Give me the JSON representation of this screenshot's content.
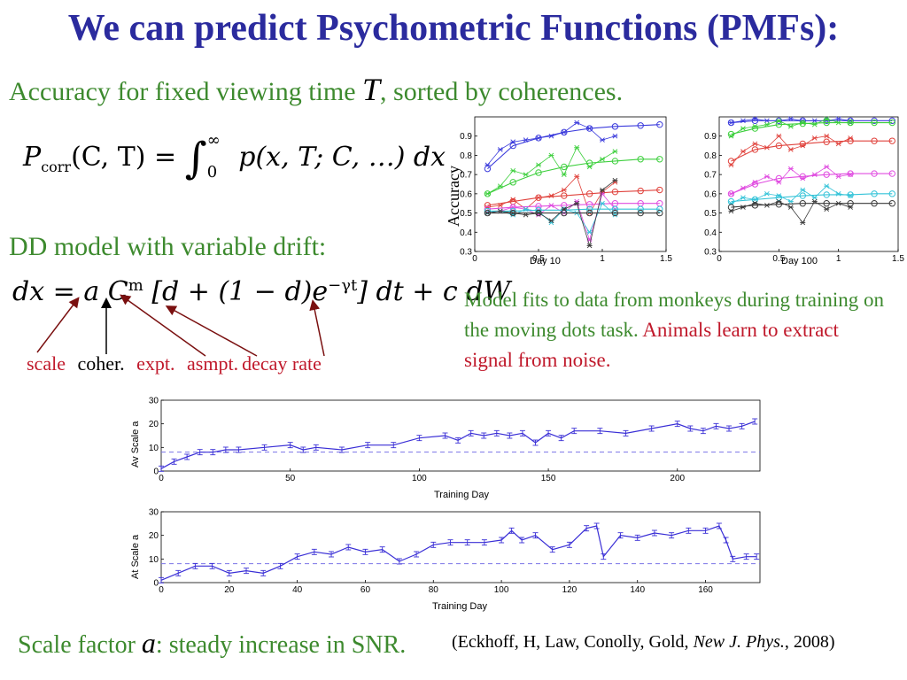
{
  "title": "We can predict Psychometric Functions (PMFs):",
  "line1": {
    "pre": "Accuracy for fixed viewing time",
    "var": "T",
    "post": ", sorted by coherences."
  },
  "eq1": {
    "lhs": "P",
    "sub": "corr",
    "args": "(C, T) =",
    "upper": "∞",
    "lower": "0",
    "integrand": "p(x, T; C, …) dx"
  },
  "line2": "DD model with variable drift:",
  "eq2": {
    "lhs": "dx = a C",
    "exp1": "m",
    "mid": " [d + (1 − d)e",
    "exp2": "−γt",
    "rhs": "] dt + c dW"
  },
  "param_labels": {
    "scale": "scale",
    "coher": "coher.",
    "expt": "expt.",
    "asmpt": "asmpt.",
    "decay": "decay rate"
  },
  "caption": {
    "black": "Model fits to data from monkeys during training on the moving dots task.",
    "red": "Animals learn to extract signal from noise."
  },
  "bottom": {
    "pre": "Scale factor",
    "var": "a",
    "post": ": steady increase in SNR."
  },
  "citation": {
    "pre": "(Eckhoff, H, Law, Conolly, Gold, ",
    "journal": "New J. Phys.",
    "post": ", 2008)"
  },
  "colors": {
    "title": "#2b2b9e",
    "green_text": "#3d8a2e",
    "red_text": "#c0192b",
    "plot_line": "#3a2fd6"
  },
  "chart_data": [
    {
      "type": "line",
      "ylabel": "Accuracy",
      "xlabel": "Day 10",
      "xlim": [
        0,
        1.5
      ],
      "ylim": [
        0.3,
        1.0
      ],
      "xticks": [
        "0",
        "0.5",
        "1",
        "1.5"
      ],
      "yticks": [
        "0.3",
        "0.4",
        "0.5",
        "0.6",
        "0.7",
        "0.8",
        "0.9"
      ],
      "fit_x": [
        0.1,
        0.3,
        0.5,
        0.7,
        0.9,
        1.1,
        1.3,
        1.45
      ],
      "series": [
        {
          "color": "#3b3bdc",
          "fit": [
            0.73,
            0.85,
            0.89,
            0.92,
            0.94,
            0.95,
            0.955,
            0.96
          ],
          "data_x": [
            0.1,
            0.2,
            0.3,
            0.4,
            0.5,
            0.6,
            0.7,
            0.8,
            0.9,
            1.0,
            1.1
          ],
          "data": [
            0.75,
            0.83,
            0.87,
            0.88,
            0.89,
            0.9,
            0.92,
            0.97,
            0.94,
            0.88,
            0.9
          ]
        },
        {
          "color": "#3ccf3c",
          "fit": [
            0.6,
            0.66,
            0.71,
            0.74,
            0.76,
            0.77,
            0.78,
            0.78
          ],
          "data_x": [
            0.1,
            0.2,
            0.3,
            0.4,
            0.5,
            0.6,
            0.7,
            0.8,
            0.9,
            1.0,
            1.1
          ],
          "data": [
            0.6,
            0.64,
            0.72,
            0.7,
            0.75,
            0.8,
            0.7,
            0.84,
            0.74,
            0.78,
            0.82
          ]
        },
        {
          "color": "#e0423c",
          "fit": [
            0.54,
            0.56,
            0.58,
            0.59,
            0.6,
            0.61,
            0.615,
            0.62
          ],
          "data_x": [
            0.1,
            0.2,
            0.3,
            0.4,
            0.5,
            0.6,
            0.7,
            0.8,
            0.9,
            1.0,
            1.1
          ],
          "data": [
            0.53,
            0.54,
            0.57,
            0.52,
            0.58,
            0.59,
            0.62,
            0.69,
            0.5,
            0.61,
            0.66
          ]
        },
        {
          "color": "#e04ce0",
          "fit": [
            0.52,
            0.53,
            0.535,
            0.54,
            0.545,
            0.55,
            0.55,
            0.55
          ],
          "data_x": [
            0.1,
            0.2,
            0.3,
            0.4,
            0.5,
            0.6,
            0.7,
            0.8,
            0.9,
            1.0,
            1.1
          ],
          "data": [
            0.5,
            0.51,
            0.53,
            0.52,
            0.49,
            0.54,
            0.5,
            0.56,
            0.36,
            0.6,
            0.52
          ]
        },
        {
          "color": "#33c3d8",
          "fit": [
            0.51,
            0.51,
            0.515,
            0.515,
            0.52,
            0.52,
            0.52,
            0.52
          ],
          "data_x": [
            0.1,
            0.2,
            0.3,
            0.4,
            0.5,
            0.6,
            0.7,
            0.8,
            0.9,
            1.0,
            1.1
          ],
          "data": [
            0.5,
            0.51,
            0.49,
            0.52,
            0.51,
            0.45,
            0.52,
            0.5,
            0.4,
            0.55,
            0.49
          ]
        },
        {
          "color": "#3a3a3a",
          "fit": [
            0.5,
            0.5,
            0.5,
            0.5,
            0.5,
            0.5,
            0.5,
            0.5
          ],
          "data_x": [
            0.1,
            0.2,
            0.3,
            0.4,
            0.5,
            0.6,
            0.7,
            0.8,
            0.9,
            1.0,
            1.1
          ],
          "data": [
            0.5,
            0.51,
            0.5,
            0.49,
            0.5,
            0.46,
            0.52,
            0.55,
            0.33,
            0.62,
            0.67
          ]
        }
      ]
    },
    {
      "type": "line",
      "xlabel": "Day 100",
      "xlim": [
        0,
        1.5
      ],
      "ylim": [
        0.3,
        1.0
      ],
      "xticks": [
        "0",
        "0.5",
        "1",
        "1.5"
      ],
      "yticks": [
        "0.3",
        "0.4",
        "0.5",
        "0.6",
        "0.7",
        "0.8",
        "0.9"
      ],
      "fit_x": [
        0.1,
        0.3,
        0.5,
        0.7,
        0.9,
        1.1,
        1.3,
        1.45
      ],
      "series": [
        {
          "color": "#3b3bdc",
          "fit": [
            0.97,
            0.98,
            0.98,
            0.98,
            0.98,
            0.98,
            0.98,
            0.98
          ],
          "data_x": [
            0.1,
            0.2,
            0.3,
            0.4,
            0.5,
            0.6,
            0.7,
            0.8,
            0.9,
            1.0,
            1.1
          ],
          "data": [
            0.97,
            0.98,
            0.99,
            0.98,
            0.98,
            0.99,
            0.98,
            0.98,
            0.98,
            0.99,
            0.98
          ]
        },
        {
          "color": "#3ccf3c",
          "fit": [
            0.91,
            0.94,
            0.96,
            0.965,
            0.97,
            0.97,
            0.97,
            0.97
          ],
          "data_x": [
            0.1,
            0.2,
            0.3,
            0.4,
            0.5,
            0.6,
            0.7,
            0.8,
            0.9,
            1.0,
            1.1
          ],
          "data": [
            0.9,
            0.94,
            0.95,
            0.96,
            0.98,
            0.95,
            0.97,
            0.96,
            0.99,
            0.97,
            0.97
          ]
        },
        {
          "color": "#e0423c",
          "fit": [
            0.77,
            0.83,
            0.85,
            0.86,
            0.87,
            0.875,
            0.875,
            0.875
          ],
          "data_x": [
            0.1,
            0.2,
            0.3,
            0.4,
            0.5,
            0.6,
            0.7,
            0.8,
            0.9,
            1.0,
            1.1
          ],
          "data": [
            0.75,
            0.82,
            0.86,
            0.84,
            0.9,
            0.83,
            0.85,
            0.89,
            0.9,
            0.86,
            0.89
          ]
        },
        {
          "color": "#e04ce0",
          "fit": [
            0.6,
            0.65,
            0.68,
            0.69,
            0.7,
            0.705,
            0.705,
            0.705
          ],
          "data_x": [
            0.1,
            0.2,
            0.3,
            0.4,
            0.5,
            0.6,
            0.7,
            0.8,
            0.9,
            1.0,
            1.1
          ],
          "data": [
            0.6,
            0.63,
            0.66,
            0.69,
            0.66,
            0.73,
            0.68,
            0.7,
            0.74,
            0.69,
            0.7
          ]
        },
        {
          "color": "#33c3d8",
          "fit": [
            0.56,
            0.57,
            0.58,
            0.59,
            0.595,
            0.595,
            0.6,
            0.6
          ],
          "data_x": [
            0.1,
            0.2,
            0.3,
            0.4,
            0.5,
            0.6,
            0.7,
            0.8,
            0.9,
            1.0,
            1.1
          ],
          "data": [
            0.55,
            0.58,
            0.57,
            0.6,
            0.59,
            0.56,
            0.62,
            0.58,
            0.64,
            0.6,
            0.59
          ]
        },
        {
          "color": "#3a3a3a",
          "fit": [
            0.53,
            0.54,
            0.545,
            0.55,
            0.55,
            0.55,
            0.55,
            0.55
          ],
          "data_x": [
            0.1,
            0.2,
            0.3,
            0.4,
            0.5,
            0.6,
            0.7,
            0.8,
            0.9,
            1.0,
            1.1
          ],
          "data": [
            0.51,
            0.53,
            0.55,
            0.54,
            0.56,
            0.53,
            0.45,
            0.56,
            0.52,
            0.55,
            0.53
          ]
        }
      ]
    },
    {
      "type": "line",
      "xlabel": "Training Day",
      "ylabel": "Av Scale a",
      "xlim": [
        0,
        232
      ],
      "ylim": [
        0,
        30
      ],
      "xticks": [
        "0",
        "50",
        "100",
        "150",
        "200"
      ],
      "yticks": [
        "0",
        "10",
        "20",
        "30"
      ],
      "reference": 8,
      "series": [
        {
          "x": [
            0,
            5,
            10,
            15,
            20,
            25,
            30,
            40,
            50,
            55,
            60,
            70,
            80,
            90,
            100,
            110,
            115,
            120,
            125,
            130,
            135,
            140,
            145,
            150,
            155,
            160,
            170,
            180,
            190,
            200,
            205,
            210,
            215,
            220,
            225,
            230
          ],
          "values": [
            1,
            4,
            6,
            8,
            8,
            9,
            9,
            10,
            11,
            9,
            10,
            9,
            11,
            11,
            14,
            15,
            13,
            16,
            15,
            16,
            15,
            16,
            12,
            16,
            14,
            17,
            17,
            16,
            18,
            20,
            18,
            17,
            19,
            18,
            19,
            21
          ]
        }
      ]
    },
    {
      "type": "line",
      "xlabel": "Training Day",
      "ylabel": "At Scale a",
      "xlim": [
        0,
        176
      ],
      "ylim": [
        0,
        30
      ],
      "xticks": [
        "0",
        "20",
        "40",
        "60",
        "80",
        "100",
        "120",
        "140",
        "160"
      ],
      "yticks": [
        "0",
        "10",
        "20",
        "30"
      ],
      "reference": 8,
      "series": [
        {
          "x": [
            0,
            5,
            10,
            15,
            20,
            25,
            30,
            35,
            40,
            45,
            50,
            55,
            60,
            65,
            70,
            75,
            80,
            85,
            90,
            95,
            100,
            103,
            106,
            110,
            115,
            120,
            125,
            128,
            130,
            135,
            140,
            145,
            150,
            155,
            160,
            164,
            166,
            168,
            172,
            175
          ],
          "values": [
            1,
            4,
            7,
            7,
            4,
            5,
            4,
            7,
            11,
            13,
            12,
            15,
            13,
            14,
            9,
            12,
            16,
            17,
            17,
            17,
            18,
            22,
            18,
            20,
            14,
            16,
            23,
            24,
            11,
            20,
            19,
            21,
            20,
            22,
            22,
            24,
            18,
            10,
            11,
            11
          ]
        }
      ]
    }
  ]
}
